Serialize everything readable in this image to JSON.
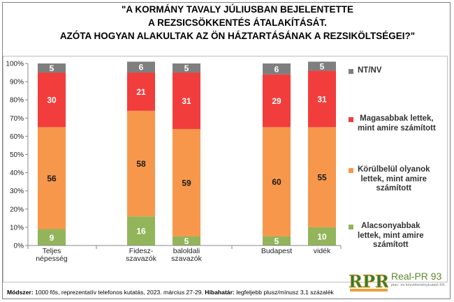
{
  "title_lines": [
    "\"A KORMÁNY TAVALY JÚLIUSBAN BEJELENTETTE",
    "A REZSICSÖKKENTÉS ÁTALAKÍTÁSÁT.",
    "AZÓTA HOGYAN ALAKULTAK AZ ÖN HÁZTARTÁSÁNAK A REZSIKÖLTSÉGEI?\""
  ],
  "footer": {
    "method_label": "Módszer:",
    "method_text": "1000 fős, reprezentatív telefonos kutatás, 2023. március 27-29.",
    "error_label": "Hibahatár:",
    "error_text": "legfeljebb plusz/mínusz 3,1 százalék"
  },
  "logo": {
    "mark": "RPR",
    "name": "Real-PR 93",
    "sub": "piac- és közvéleménykutató Kft."
  },
  "chart_data": {
    "type": "bar",
    "stacked": true,
    "percent": true,
    "categories": [
      [
        "Teljes",
        "népesség"
      ],
      [
        "Fidesz-",
        "szavazók"
      ],
      [
        "baloldali",
        "szavazók"
      ],
      [
        "Budapest"
      ],
      [
        "vidék"
      ]
    ],
    "groups": [
      [
        0
      ],
      [
        1,
        2
      ],
      [
        3,
        4
      ]
    ],
    "yticks": [
      "0%",
      "10%",
      "20%",
      "30%",
      "40%",
      "50%",
      "60%",
      "70%",
      "80%",
      "90%",
      "100%"
    ],
    "ylim": [
      0,
      100
    ],
    "grid": false,
    "legend_position": "right",
    "series": [
      {
        "name": "Alacsonyabbak lettek, mint amire számított",
        "legend_lines": [
          "Alacsonyabbak",
          "lettek, mint amire",
          "számított"
        ],
        "color": "#92b55b",
        "values": [
          9,
          16,
          5,
          5,
          10
        ]
      },
      {
        "name": "Körülbelül olyanok lettek, mint amire számított",
        "legend_lines": [
          "Körülbelül olyanok",
          "lettek, mint amire",
          "számított"
        ],
        "color": "#f7974b",
        "values": [
          56,
          58,
          59,
          60,
          55
        ]
      },
      {
        "name": "Magasabbak lettek, mint amire számított",
        "legend_lines": [
          "Magasabbak lettek,",
          "mint amire számított"
        ],
        "color": "#f23d3d",
        "values": [
          30,
          21,
          31,
          29,
          31
        ]
      },
      {
        "name": "NT/NV",
        "legend_lines": [
          "NT/NV"
        ],
        "color": "#7f7f7f",
        "values": [
          5,
          6,
          5,
          6,
          5
        ]
      }
    ]
  }
}
